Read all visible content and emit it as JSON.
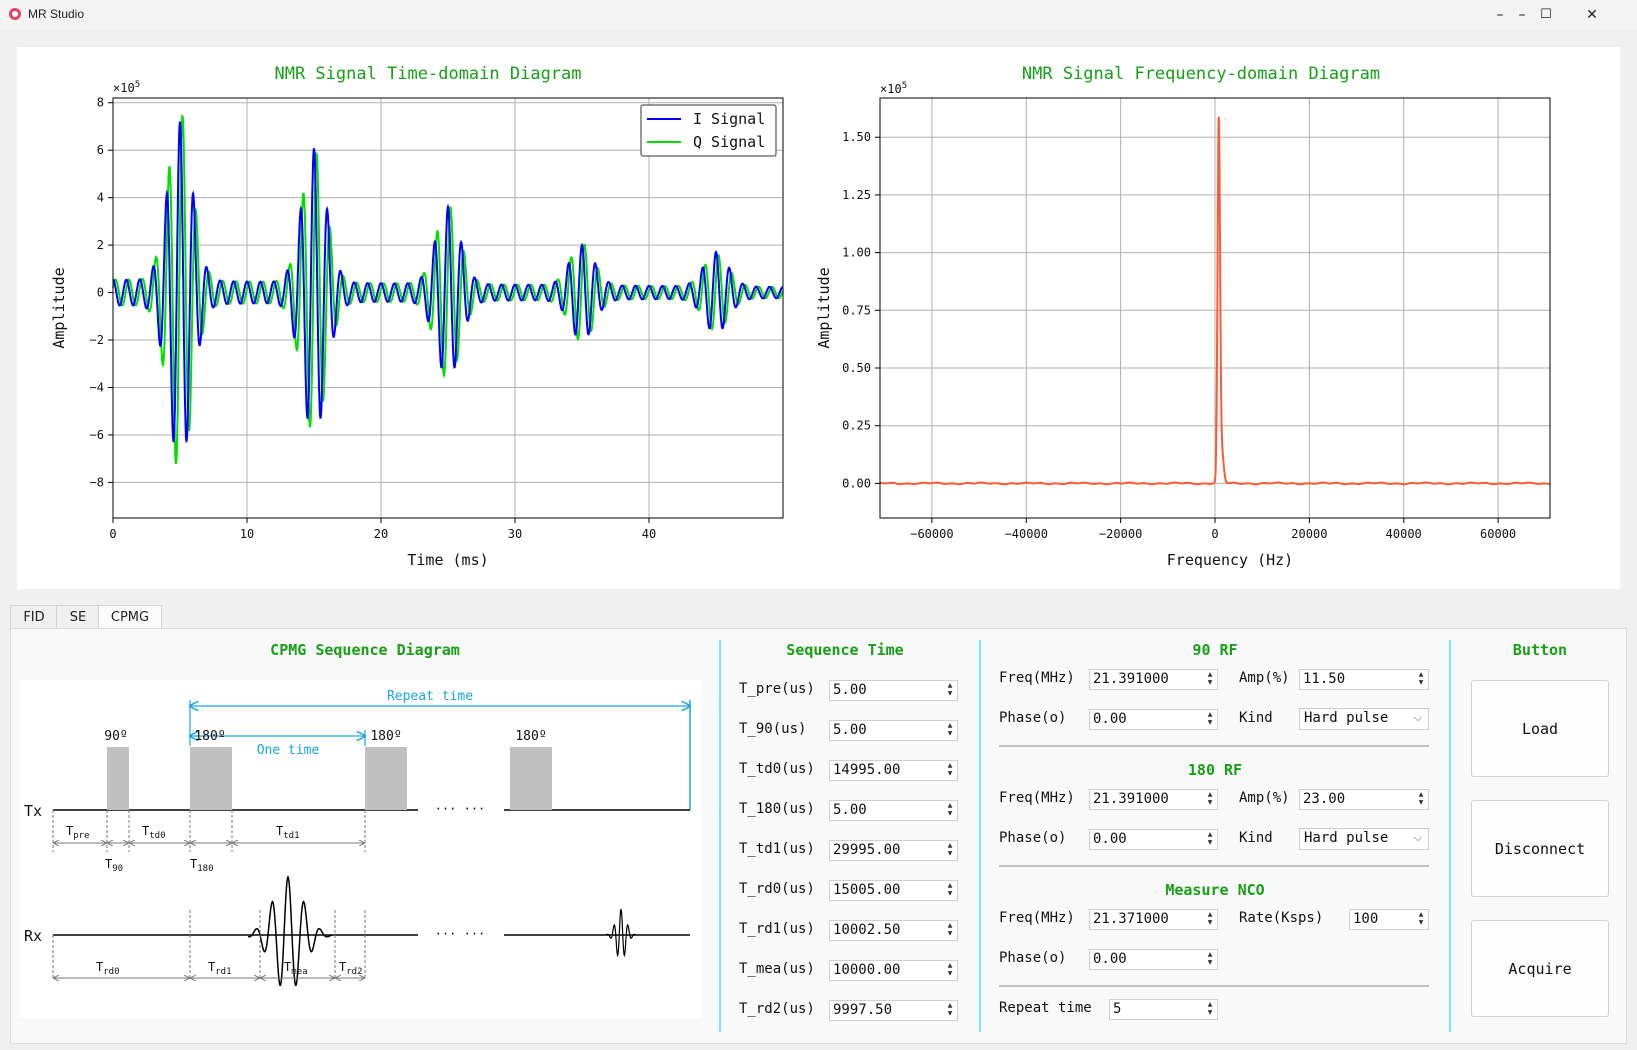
{
  "window": {
    "title": "MR Studio",
    "minimize_glyph": "–",
    "maximize_glyph": "☐",
    "close_glyph": "✕",
    "icon": "app-icon",
    "accent": "#e8416a"
  },
  "plots": {
    "time_domain": {
      "title": "NMR Signal Time-domain Diagram",
      "xlabel": "Time (ms)",
      "ylabel": "Amplitude",
      "multiplier": "×10",
      "multiplier_exp": "5"
    },
    "freq_domain": {
      "title": "NMR Signal Frequency-domain Diagram",
      "xlabel": "Frequency (Hz)",
      "ylabel": "Amplitude",
      "multiplier": "×10",
      "multiplier_exp": "5"
    }
  },
  "chart_data": [
    {
      "type": "line",
      "title": "NMR Signal Time-domain Diagram",
      "xlabel": "Time (ms)",
      "ylabel": "Amplitude",
      "y_unit": "×10^5",
      "xlim": [
        0,
        50
      ],
      "ylim": [
        -9.5,
        8.2
      ],
      "x_ticks": [
        0,
        10,
        20,
        30,
        40
      ],
      "y_ticks": [
        -8,
        -6,
        -4,
        -2,
        0,
        2,
        4,
        6,
        8
      ],
      "grid": true,
      "legend": "top-right",
      "series": [
        {
          "name": "I Signal",
          "color": "#0000ff",
          "echoes": [
            {
              "center": 5,
              "peak_pos": 6.3,
              "peak_neg": -7.1
            },
            {
              "center": 15,
              "peak_pos": 6.2,
              "peak_neg": -5.1
            },
            {
              "center": 25,
              "peak_pos": 2.9,
              "peak_neg": -3.6
            },
            {
              "center": 35,
              "peak_pos": 1.8,
              "peak_neg": -1.6
            },
            {
              "center": 45,
              "peak_pos": 1.3,
              "peak_neg": -1.6
            }
          ]
        },
        {
          "name": "Q Signal",
          "color": "#00e000",
          "echoes": [
            {
              "center": 5,
              "peak_pos": 7.1,
              "peak_neg": -7.1
            },
            {
              "center": 15,
              "peak_pos": 5.1,
              "peak_neg": -6.0
            },
            {
              "center": 25,
              "peak_pos": 3.5,
              "peak_neg": -3.1
            },
            {
              "center": 35,
              "peak_pos": 1.9,
              "peak_neg": -1.6
            },
            {
              "center": 45,
              "peak_pos": 1.5,
              "peak_neg": -1.2
            }
          ]
        }
      ]
    },
    {
      "type": "line",
      "title": "NMR Signal Frequency-domain Diagram",
      "xlabel": "Frequency (Hz)",
      "ylabel": "Amplitude",
      "y_unit": "×10^5",
      "xlim": [
        -71000,
        71000
      ],
      "ylim": [
        -0.15,
        1.67
      ],
      "x_ticks": [
        -60000,
        -40000,
        -20000,
        0,
        20000,
        40000,
        60000
      ],
      "y_ticks": [
        0.0,
        0.25,
        0.5,
        0.75,
        1.0,
        1.25,
        1.5
      ],
      "y_tick_labels": [
        "0.00",
        "0.25",
        "0.50",
        "0.75",
        "1.00",
        "1.25",
        "1.50"
      ],
      "grid": true,
      "series": [
        {
          "color": "#ff5a36",
          "peak_x": 800,
          "peak_y": 1.54,
          "baseline": 0.0
        }
      ]
    }
  ],
  "tabs": [
    {
      "label": "FID"
    },
    {
      "label": "SE"
    },
    {
      "label": "CPMG"
    }
  ],
  "active_tab": "CPMG",
  "cpmg": {
    "title": "CPMG Sequence Diagram",
    "repeat_time": "Repeat time",
    "one_time": "One time",
    "tx": "Tx",
    "rx": "Rx",
    "deg90": "90º",
    "deg180": "180º",
    "dots": "··· ···",
    "t_pre": "T",
    "t_pre_sub": "pre",
    "t_90": "T",
    "t_90_sub": "90",
    "t_td0": "T",
    "t_td0_sub": "td0",
    "t_180": "T",
    "t_180_sub": "180",
    "t_td1": "T",
    "t_td1_sub": "td1",
    "t_rd0": "T",
    "t_rd0_sub": "rd0",
    "t_rd1": "T",
    "t_rd1_sub": "rd1",
    "t_mea": "T",
    "t_mea_sub": "mea",
    "t_rd2": "T",
    "t_rd2_sub": "rd2"
  },
  "sequence_time": {
    "title": "Sequence Time",
    "rows": [
      {
        "label": "T_pre(us)",
        "value": "5.00"
      },
      {
        "label": "T_90(us)",
        "value": "5.00"
      },
      {
        "label": "T_td0(us)",
        "value": "14995.00"
      },
      {
        "label": "T_180(us)",
        "value": "5.00"
      },
      {
        "label": "T_td1(us)",
        "value": "29995.00"
      },
      {
        "label": "T_rd0(us)",
        "value": "15005.00"
      },
      {
        "label": "T_rd1(us)",
        "value": "10002.50"
      },
      {
        "label": "T_mea(us)",
        "value": "10000.00"
      },
      {
        "label": "T_rd2(us)",
        "value": "9997.50"
      }
    ]
  },
  "rf90": {
    "title": "90 RF",
    "freq_label": "Freq(MHz)",
    "freq": "21.391000",
    "amp_label": "Amp(%)",
    "amp": "11.50",
    "phase_label": "Phase(o)",
    "phase": "0.00",
    "kind_label": "Kind",
    "kind": "Hard pulse"
  },
  "rf180": {
    "title": "180 RF",
    "freq_label": "Freq(MHz)",
    "freq": "21.391000",
    "amp_label": "Amp(%)",
    "amp": "23.00",
    "phase_label": "Phase(o)",
    "phase": "0.00",
    "kind_label": "Kind",
    "kind": "Hard pulse"
  },
  "nco": {
    "title": "Measure NCO",
    "freq_label": "Freq(MHz)",
    "freq": "21.371000",
    "rate_label": "Rate(Ksps)",
    "rate": "100",
    "phase_label": "Phase(o)",
    "phase": "0.00"
  },
  "repeat": {
    "label": "Repeat time",
    "value": "5"
  },
  "buttons": {
    "title": "Button",
    "load": "Load",
    "disconnect": "Disconnect",
    "acquire": "Acquire"
  },
  "colors": {
    "panel_title": "#17a017",
    "divider": "#7de7f0",
    "seq_blue": "#1aa6e0"
  }
}
